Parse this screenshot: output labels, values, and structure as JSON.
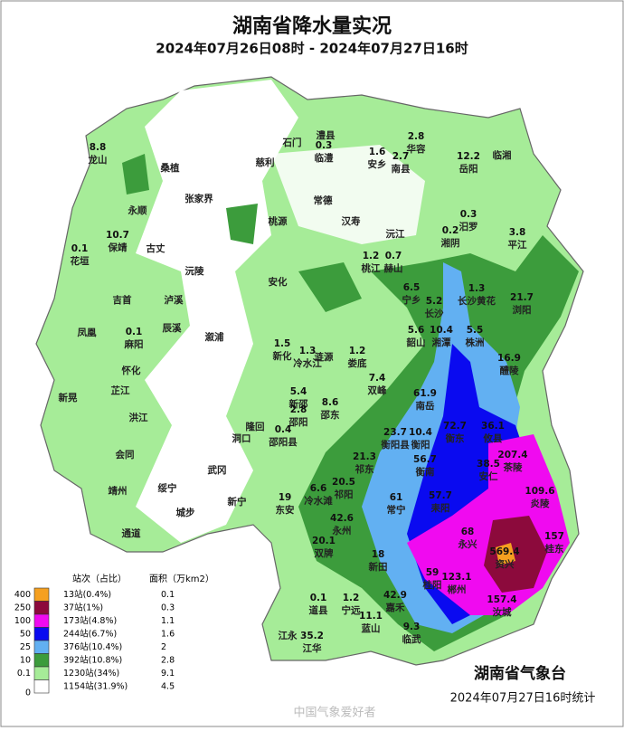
{
  "header": {
    "title": "湖南省降水量实况",
    "subtitle": "2024年07月26日08时 - 2024年07月27日16时"
  },
  "legend": {
    "col_count": "站次（占比）",
    "col_area": "面积（万km2）",
    "levels": [
      400,
      250,
      100,
      50,
      25,
      10,
      0.1,
      0
    ],
    "rows": [
      {
        "color": "#f5a020",
        "count": "13站(0.4%)",
        "area": 0.1
      },
      {
        "color": "#8c0a3c",
        "count": "37站(1%)",
        "area": 0.3
      },
      {
        "color": "#f00af0",
        "count": "173站(4.8%)",
        "area": 1.1
      },
      {
        "color": "#0a0af0",
        "count": "244站(6.7%)",
        "area": 1.6
      },
      {
        "color": "#62b0f2",
        "count": "376站(10.4%)",
        "area": 2
      },
      {
        "color": "#3c9c3c",
        "count": "392站(10.8%)",
        "area": 2.8
      },
      {
        "color": "#a6ec98",
        "count": "1230站(34%)",
        "area": 9.1
      },
      {
        "color": "#ffffff",
        "count": "1154站(31.9%)",
        "area": 4.5
      }
    ]
  },
  "stations": [
    {
      "name": "龙山",
      "value": 8.8
    },
    {
      "name": "临澧",
      "value": 0.3
    },
    {
      "name": "安乡",
      "value": 1.6
    },
    {
      "name": "华容",
      "value": 2.8
    },
    {
      "name": "南县",
      "value": 2.7
    },
    {
      "name": "岳阳",
      "value": 12.2
    },
    {
      "name": "汨罗",
      "value": 0.3
    },
    {
      "name": "湘阴",
      "value": 0.2
    },
    {
      "name": "平江",
      "value": 3.8
    },
    {
      "name": "保靖",
      "value": 10.7
    },
    {
      "name": "花垣",
      "value": 0.1
    },
    {
      "name": "桃江",
      "value": 1.2
    },
    {
      "name": "赫山",
      "value": 0.7
    },
    {
      "name": "宁乡",
      "value": 6.5
    },
    {
      "name": "长沙",
      "value": 5.2
    },
    {
      "name": "长沙黄花",
      "value": 1.3
    },
    {
      "name": "浏阳",
      "value": 21.7
    },
    {
      "name": "麻阳",
      "value": 0.1
    },
    {
      "name": "韶山",
      "value": 5.6
    },
    {
      "name": "湘潭",
      "value": 10.4
    },
    {
      "name": "株洲",
      "value": 5.5
    },
    {
      "name": "新化",
      "value": 1.5
    },
    {
      "name": "冷水江",
      "value": 1.3
    },
    {
      "name": "娄底",
      "value": 1.2
    },
    {
      "name": "醴陵",
      "value": 16.9
    },
    {
      "name": "双峰",
      "value": 7.4
    },
    {
      "name": "邵东",
      "value": 8.6
    },
    {
      "name": "新邵",
      "value": 5.4
    },
    {
      "name": "邵阳",
      "value": 2.8
    },
    {
      "name": "邵阳县",
      "value": 0.4
    },
    {
      "name": "南岳",
      "value": 61.9
    },
    {
      "name": "衡阳县",
      "value": 23.7
    },
    {
      "name": "衡阳",
      "value": 10.4
    },
    {
      "name": "衡东",
      "value": 72.7
    },
    {
      "name": "攸县",
      "value": 36.1
    },
    {
      "name": "衡南",
      "value": 56.7
    },
    {
      "name": "安仁",
      "value": 38.5
    },
    {
      "name": "茶陵",
      "value": 207.4
    },
    {
      "name": "祁东",
      "value": 21.3
    },
    {
      "name": "祁阳",
      "value": 20.5
    },
    {
      "name": "冷水滩",
      "value": 6.6
    },
    {
      "name": "东安",
      "value": 19
    },
    {
      "name": "常宁",
      "value": 61
    },
    {
      "name": "耒阳",
      "value": 57.7
    },
    {
      "name": "炎陵",
      "value": 109.6
    },
    {
      "name": "永州",
      "value": 42.6
    },
    {
      "name": "永兴",
      "value": 68
    },
    {
      "name": "资兴",
      "value": 569.4
    },
    {
      "name": "桂东",
      "value": 157
    },
    {
      "name": "双牌",
      "value": 20.1
    },
    {
      "name": "新田",
      "value": 18
    },
    {
      "name": "桂阳",
      "value": 59
    },
    {
      "name": "郴州",
      "value": 123.1
    },
    {
      "name": "道县",
      "value": 0.1
    },
    {
      "name": "宁远",
      "value": 1.2
    },
    {
      "name": "嘉禾",
      "value": 42.9
    },
    {
      "name": "汝城",
      "value": 157.4
    },
    {
      "name": "蓝山",
      "value": 11.1
    },
    {
      "name": "临武",
      "value": 9.3
    },
    {
      "name": "江华",
      "value": 35.2
    },
    {
      "name": "桑植"
    },
    {
      "name": "慈利"
    },
    {
      "name": "石门"
    },
    {
      "name": "澧县"
    },
    {
      "name": "张家界"
    },
    {
      "name": "永顺"
    },
    {
      "name": "古丈"
    },
    {
      "name": "常德"
    },
    {
      "name": "桃源"
    },
    {
      "name": "汉寿"
    },
    {
      "name": "沅江"
    },
    {
      "name": "临湘"
    },
    {
      "name": "吉首"
    },
    {
      "name": "泸溪"
    },
    {
      "name": "沅陵"
    },
    {
      "name": "安化"
    },
    {
      "name": "辰溪"
    },
    {
      "name": "凤凰"
    },
    {
      "name": "溆浦"
    },
    {
      "name": "涟源"
    },
    {
      "name": "怀化"
    },
    {
      "name": "芷江"
    },
    {
      "name": "新晃"
    },
    {
      "name": "洪江"
    },
    {
      "name": "会同"
    },
    {
      "name": "隆回"
    },
    {
      "name": "洞口"
    },
    {
      "name": "武冈"
    },
    {
      "name": "靖州"
    },
    {
      "name": "绥宁"
    },
    {
      "name": "新宁"
    },
    {
      "name": "城步"
    },
    {
      "name": "通道"
    },
    {
      "name": "江永"
    }
  ],
  "footer": {
    "agency": "湖南省气象台",
    "time": "2024年07月27日16时统计",
    "watermark": "中国气象爱好者"
  }
}
